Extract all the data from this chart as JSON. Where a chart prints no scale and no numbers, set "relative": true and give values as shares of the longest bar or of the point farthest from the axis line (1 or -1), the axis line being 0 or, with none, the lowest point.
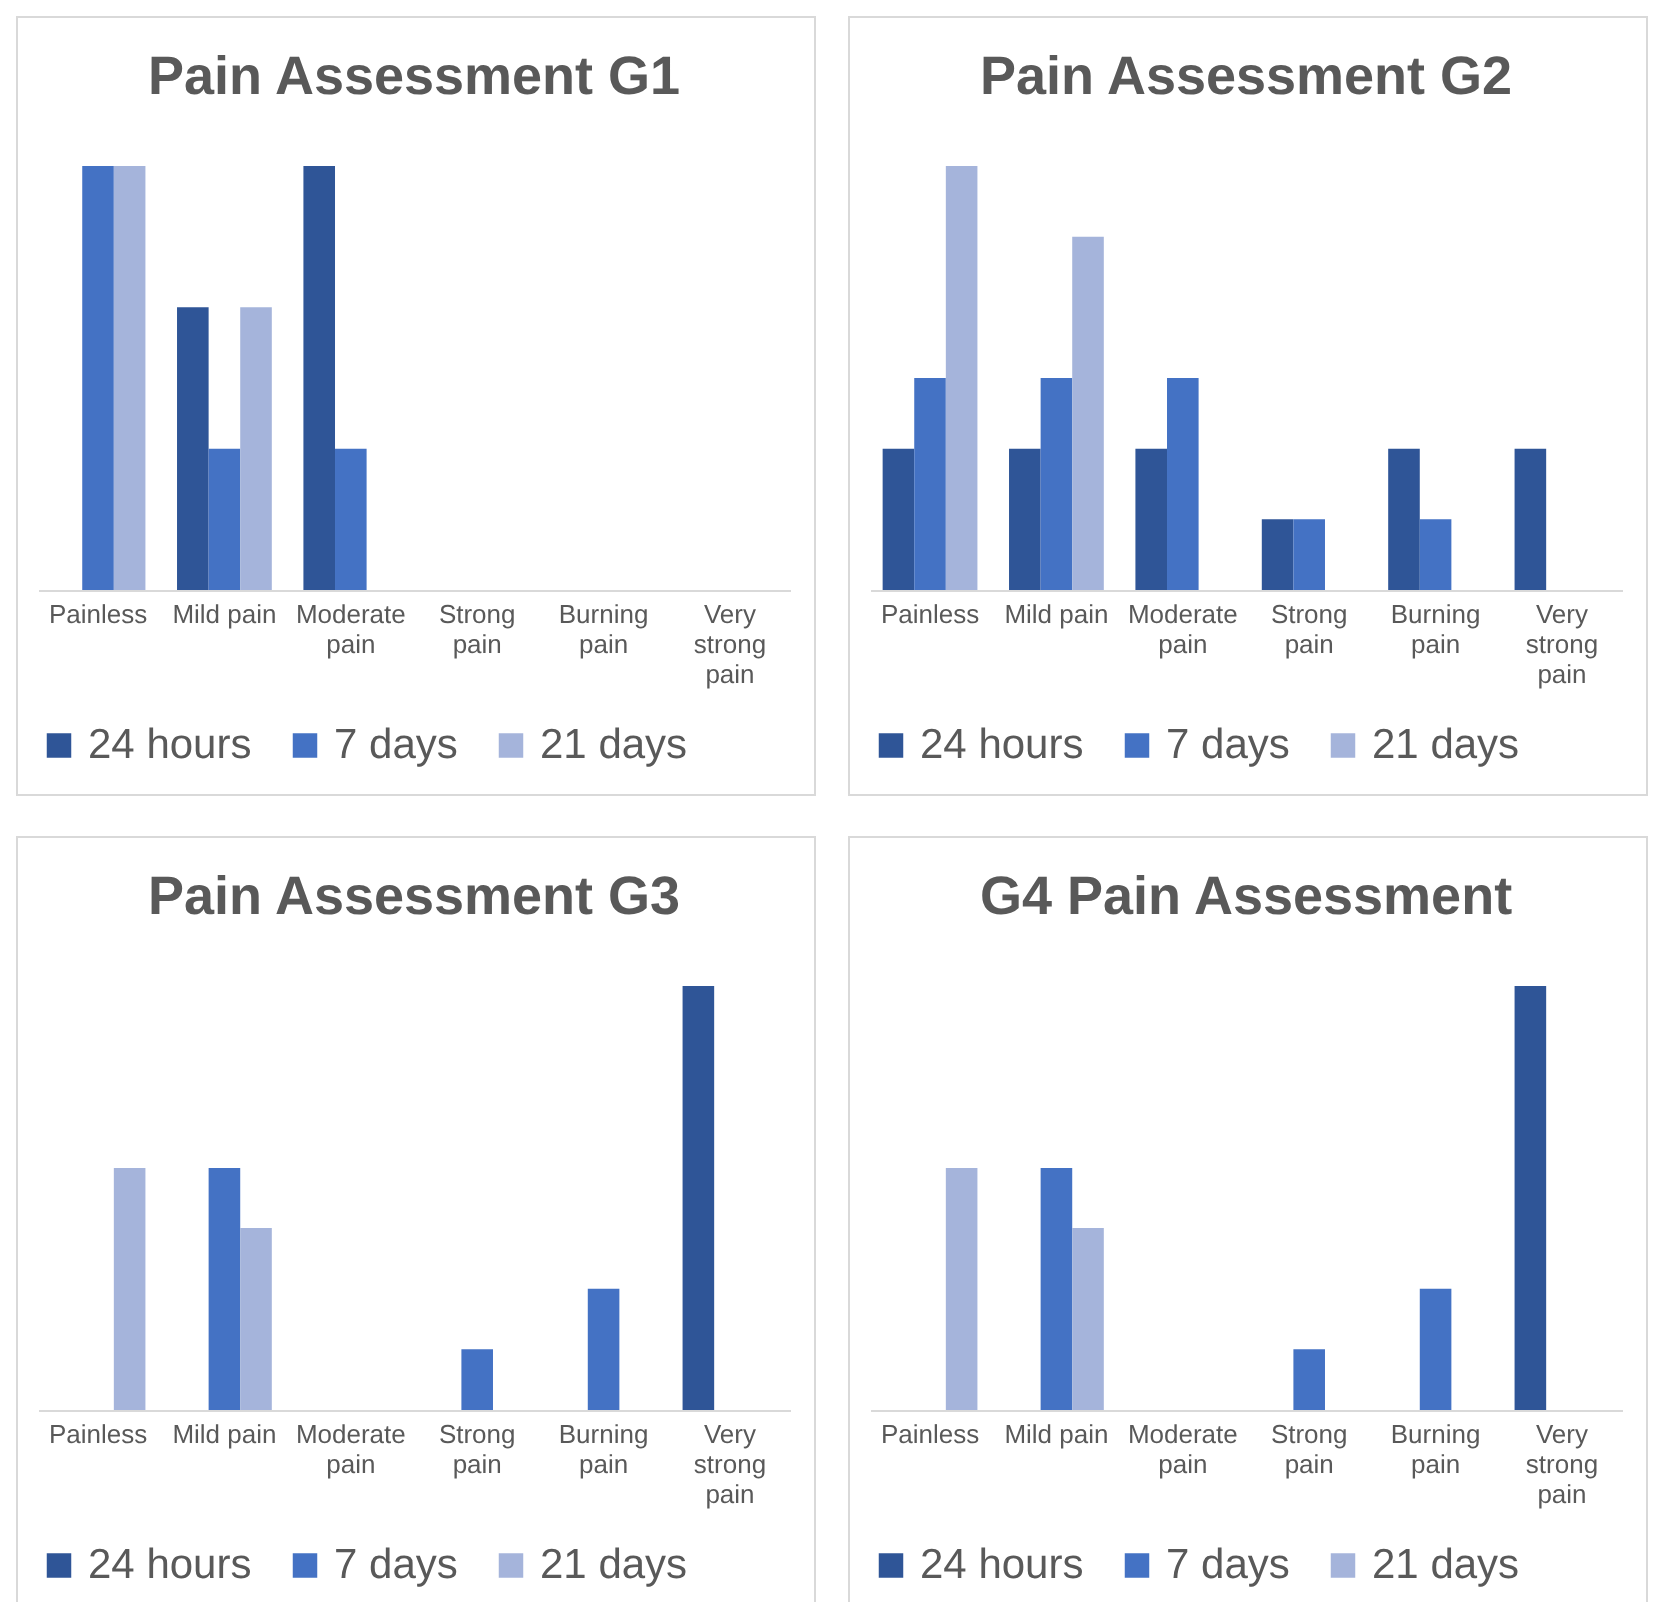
{
  "chart_data": [
    {
      "type": "bar",
      "title": "Pain Assessment G1",
      "categories": [
        "Painless",
        "Mild pain",
        "Moderate pain",
        "Strong pain",
        "Burning pain",
        "Very strong pain"
      ],
      "relative": true,
      "legend": "bottom",
      "series": [
        {
          "name": "24 hours",
          "color": "#2f5597",
          "values": [
            0,
            0.667,
            1,
            0,
            0,
            0
          ]
        },
        {
          "name": "7 days",
          "color": "#4472c4",
          "values": [
            1,
            0.333,
            0.333,
            0,
            0,
            0
          ]
        },
        {
          "name": "21 days",
          "color": "#a5b4db",
          "values": [
            1,
            0.667,
            0,
            0,
            0,
            0
          ]
        }
      ]
    },
    {
      "type": "bar",
      "title": "Pain Assessment G2",
      "categories": [
        "Painless",
        "Mild pain",
        "Moderate pain",
        "Strong pain",
        "Burning pain",
        "Very strong pain"
      ],
      "relative": true,
      "legend": "bottom",
      "series": [
        {
          "name": "24 hours",
          "color": "#2f5597",
          "values": [
            0.333,
            0.333,
            0.333,
            0.167,
            0.333,
            0.333
          ]
        },
        {
          "name": "7 days",
          "color": "#4472c4",
          "values": [
            0.5,
            0.5,
            0.5,
            0.167,
            0.167,
            0
          ]
        },
        {
          "name": "21 days",
          "color": "#a5b4db",
          "values": [
            1,
            0.833,
            0,
            0,
            0,
            0
          ]
        }
      ]
    },
    {
      "type": "bar",
      "title": "Pain Assessment G3",
      "categories": [
        "Painless",
        "Mild pain",
        "Moderate pain",
        "Strong pain",
        "Burning pain",
        "Very strong pain"
      ],
      "relative": true,
      "legend": "bottom",
      "series": [
        {
          "name": "24 hours",
          "color": "#2f5597",
          "values": [
            0,
            0,
            0,
            0,
            0,
            1
          ]
        },
        {
          "name": "7 days",
          "color": "#4472c4",
          "values": [
            0,
            0.571,
            0,
            0.143,
            0.286,
            0
          ]
        },
        {
          "name": "21 days",
          "color": "#a5b4db",
          "values": [
            0.571,
            0.429,
            0,
            0,
            0,
            0
          ]
        }
      ]
    },
    {
      "type": "bar",
      "title": "G4 Pain Assessment",
      "categories": [
        "Painless",
        "Mild pain",
        "Moderate pain",
        "Strong pain",
        "Burning pain",
        "Very strong pain"
      ],
      "relative": true,
      "legend": "bottom",
      "series": [
        {
          "name": "24 hours",
          "color": "#2f5597",
          "values": [
            0,
            0,
            0,
            0,
            0,
            1
          ]
        },
        {
          "name": "7 days",
          "color": "#4472c4",
          "values": [
            0,
            0.571,
            0,
            0.143,
            0.286,
            0
          ]
        },
        {
          "name": "21 days",
          "color": "#a5b4db",
          "values": [
            0.571,
            0.429,
            0,
            0,
            0,
            0
          ]
        }
      ]
    }
  ]
}
